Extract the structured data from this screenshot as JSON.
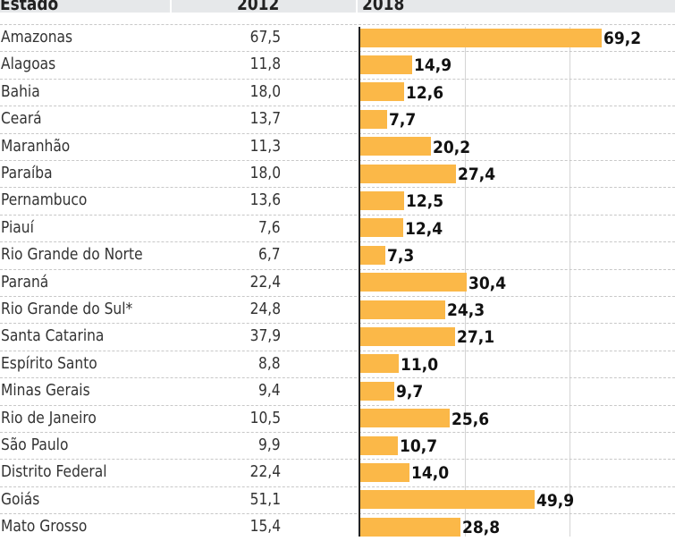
{
  "chart_data": {
    "type": "bar",
    "columns": {
      "state": "Estado",
      "y2012": "2012",
      "y2018": "2018"
    },
    "categories": [
      "Amazonas",
      "Alagoas",
      "Bahia",
      "Ceará",
      "Maranhão",
      "Paraíba",
      "Pernambuco",
      "Piauí",
      "Rio Grande do Norte",
      "Paraná",
      "Rio Grande do Sul*",
      "Santa Catarina",
      "Espírito Santo",
      "Minas Gerais",
      "Rio de Janeiro",
      "São Paulo",
      "Distrito Federal",
      "Goiás",
      "Mato Grosso"
    ],
    "values_2012": [
      "67,5",
      "11,8",
      "18,0",
      "13,7",
      "11,3",
      "18,0",
      "13,6",
      "7,6",
      "6,7",
      "22,4",
      "24,8",
      "37,9",
      "8,8",
      "9,4",
      "10,5",
      "9,9",
      "22,4",
      "51,1",
      "15,4"
    ],
    "values_2018": [
      69.2,
      14.9,
      12.6,
      7.7,
      20.2,
      27.4,
      12.5,
      12.4,
      7.3,
      30.4,
      24.3,
      27.1,
      11.0,
      9.7,
      25.6,
      10.7,
      14.0,
      49.9,
      28.8
    ],
    "labels_2018": [
      "69,2",
      "14,9",
      "12,6",
      "7,7",
      "20,2",
      "27,4",
      "12,5",
      "12,4",
      "7,3",
      "30,4",
      "24,3",
      "27,1",
      "11,0",
      "9,7",
      "25,6",
      "10,7",
      "14,0",
      "49,9",
      "28,8"
    ],
    "xlim": [
      0,
      90
    ],
    "gridlines": [
      30,
      60
    ],
    "bar_color": "#fbb848"
  }
}
